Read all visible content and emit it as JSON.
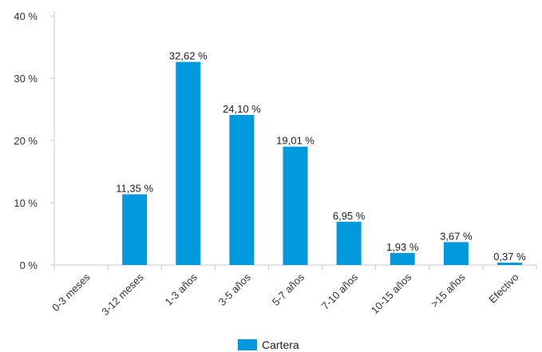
{
  "chart_data": {
    "type": "bar",
    "categories": [
      "0-3 meses",
      "3-12 meses",
      "1-3 años",
      "3-5 años",
      "5-7 años",
      "7-10 años",
      "10-15 años",
      ">15 años",
      "Efectivo"
    ],
    "series": [
      {
        "name": "Cartera",
        "values": [
          0,
          11.35,
          32.62,
          24.1,
          19.01,
          6.95,
          1.93,
          3.67,
          0.37
        ],
        "data_labels": [
          "",
          "11,35 %",
          "32,62 %",
          "24,10 %",
          "19,01 %",
          "6,95 %",
          "1,93 %",
          "3,67 %",
          "0,37 %"
        ]
      }
    ],
    "ylim": [
      0,
      40
    ],
    "yticks": [
      0,
      10,
      20,
      30,
      40
    ],
    "ytick_labels": [
      "0 %",
      "10 %",
      "20 %",
      "30 %",
      "40 %"
    ],
    "grid": false,
    "legend_position": "bottom",
    "colors": {
      "bar": "#0099dd",
      "axis": "#c8c8c8"
    }
  }
}
